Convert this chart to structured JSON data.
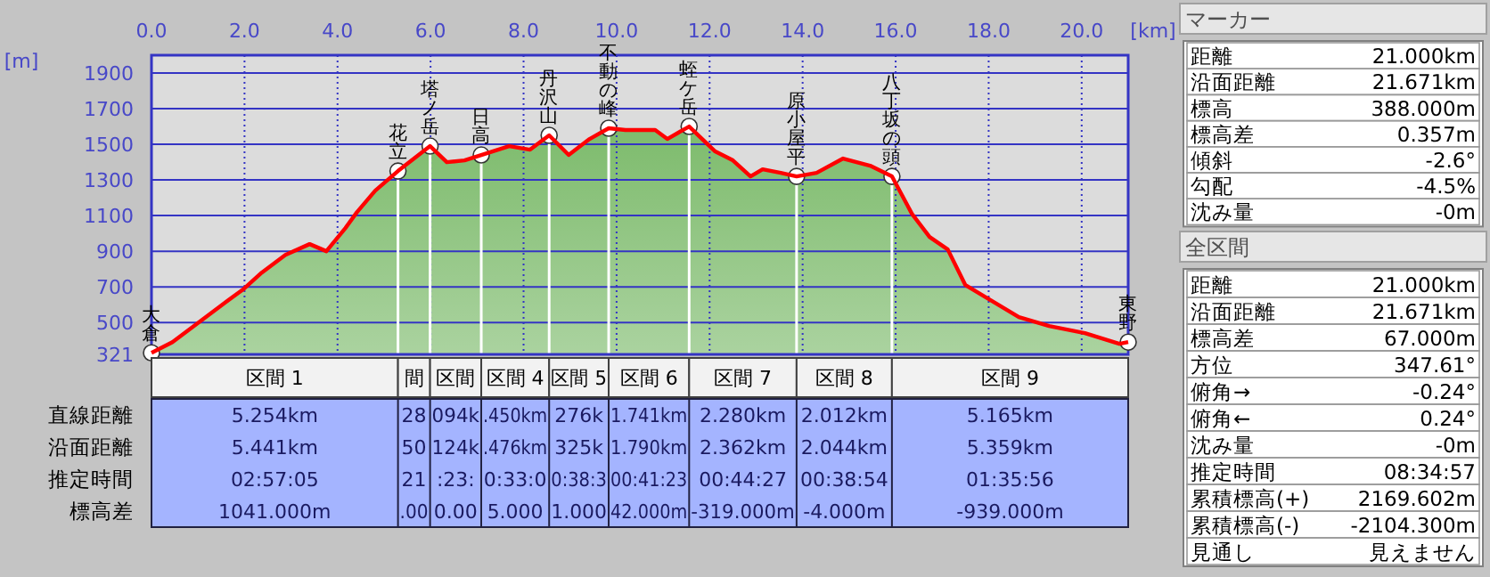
{
  "chart_data": [
    {
      "type": "area",
      "xlabel": "[km]",
      "ylabel": "[m]",
      "x": [
        0,
        0.45,
        0.96,
        1.47,
        1.99,
        2.37,
        2.88,
        3.4,
        3.76,
        4.17,
        4.42,
        4.81,
        5.3,
        5.99,
        6.35,
        6.73,
        7.09,
        7.69,
        8.14,
        8.55,
        8.97,
        9.42,
        9.83,
        10.19,
        10.83,
        11.09,
        11.56,
        12.12,
        12.5,
        12.88,
        13.14,
        13.53,
        13.87,
        14.3,
        14.87,
        15.45,
        15.92,
        16.35,
        16.73,
        17.12,
        17.5,
        18.01,
        18.65,
        19.3,
        20.07,
        20.81,
        21.0
      ],
      "series": [
        {
          "type": "area",
          "color": "#ff0000",
          "colors": [
            "#7dbb6c",
            "#7dbb6c",
            "#7dbb6c",
            "#7dbb6c",
            "#7dbb6c",
            "#7dbb6c",
            "#7dbb6c",
            "#7dbb6c",
            "#7dbb6c",
            "#7dbb6c",
            "#7dbb6c",
            "#7dbb6c",
            "#7dbb6c",
            "#7dbb6c",
            "#7dbb6c",
            "#7dbb6c",
            "#7dbb6c",
            "#7dbb6c",
            "#7dbb6c",
            "#7dbb6c",
            "#7dbb6c",
            "#7dbb6c",
            "#7dbb6c",
            "#7dbb6c",
            "#7dbb6c",
            "#7dbb6c",
            "#7dbb6c",
            "#7dbb6c",
            "#7dbb6c",
            "#7dbb6c",
            "#7dbb6c",
            "#7dbb6c",
            "#7dbb6c",
            "#7dbb6c",
            "#7dbb6c",
            "#7dbb6c",
            "#7dbb6c",
            "#7dbb6c",
            "#7dbb6c",
            "#7dbb6c",
            "#7dbb6c",
            "#7dbb6c",
            "#7dbb6c",
            "#7dbb6c",
            "#7dbb6c",
            "#7dbb6c",
            "#7dbb6c"
          ],
          "values": [
            330,
            390,
            490,
            590,
            690,
            780,
            880,
            940,
            900,
            1030,
            1120,
            1240,
            1350,
            1490,
            1400,
            1410,
            1440,
            1490,
            1470,
            1550,
            1440,
            1530,
            1590,
            1580,
            1580,
            1530,
            1600,
            1460,
            1410,
            1320,
            1360,
            1340,
            1320,
            1340,
            1420,
            1380,
            1320,
            1110,
            980,
            910,
            710,
            630,
            530,
            480,
            440,
            380,
            390
          ]
        }
      ],
      "xlim": [
        0,
        21
      ],
      "ylim": [
        321,
        2000
      ],
      "xticks": [
        {
          "value": 0,
          "label": "0.0"
        },
        {
          "value": 2,
          "label": "2.0"
        },
        {
          "value": 4,
          "label": "4.0"
        },
        {
          "value": 6,
          "label": "6.0"
        },
        {
          "value": 8,
          "label": "8.0"
        },
        {
          "value": 10,
          "label": "10.0"
        },
        {
          "value": 12,
          "label": "12.0"
        },
        {
          "value": 14,
          "label": "14.0"
        },
        {
          "value": 16,
          "label": "16.0"
        },
        {
          "value": 18,
          "label": "18.0"
        },
        {
          "value": 20,
          "label": "20.0"
        }
      ],
      "yticks": [
        321,
        500,
        700,
        900,
        1100,
        1300,
        1500,
        1700,
        1900
      ],
      "grid": true,
      "annotations": [
        {
          "text": "大倉",
          "x": 0,
          "y": 330
        },
        {
          "text": "花立",
          "x": 5.3,
          "y": 1350
        },
        {
          "text": "塔ノ岳",
          "x": 5.99,
          "y": 1490
        },
        {
          "text": "日高",
          "x": 7.09,
          "y": 1440
        },
        {
          "text": "丹沢山",
          "x": 8.55,
          "y": 1550
        },
        {
          "text": "不動の峰",
          "x": 9.83,
          "y": 1590
        },
        {
          "text": "蛭ケ岳",
          "x": 11.56,
          "y": 1600
        },
        {
          "text": "原小屋平",
          "x": 13.87,
          "y": 1320
        },
        {
          "text": "八丁坂の頭",
          "x": 15.92,
          "y": 1320
        },
        {
          "text": "東野",
          "x": 21.0,
          "y": 390
        }
      ]
    },
    {
      "type": "other",
      "categories": [
        "区間 1",
        "間",
        "区間",
        "区間 4",
        "区間 5",
        "区間 6",
        "区間 7",
        "区間 8",
        "区間 9"
      ],
      "y_categories": [
        "直線距離",
        "沿面距離",
        "推定時間",
        "標高差"
      ],
      "cell_labels": [
        [
          "5.254km",
          "28",
          "094k",
          ".450km",
          "276k",
          "1.741km",
          "2.280km",
          "2.012km",
          "5.165km"
        ],
        [
          "5.441km",
          "50",
          "124k",
          ".476km",
          "325k",
          "1.790km",
          "2.362km",
          "2.044km",
          "5.359km"
        ],
        [
          "02:57:05",
          "21",
          ":23:",
          "0:33:0",
          "0:38:3",
          "00:41:23",
          "00:44:27",
          "00:38:54",
          "01:35:56"
        ],
        [
          "1041.000m",
          ".00",
          "0.00",
          "5.000",
          "1.000",
          "42.000m",
          "-319.000m",
          "-4.000m",
          "-939.000m"
        ]
      ]
    },
    {
      "type": "other",
      "title": "マーカー",
      "y_categories": [
        "距離",
        "沿面距離",
        "標高",
        "標高差",
        "傾斜",
        "勾配",
        "沈み量"
      ],
      "cell_labels": [
        [
          "21.000km"
        ],
        [
          "21.671km"
        ],
        [
          "388.000m"
        ],
        [
          "0.357m"
        ],
        [
          "-2.6°"
        ],
        [
          "-4.5%"
        ],
        [
          "-0m"
        ]
      ]
    },
    {
      "type": "other",
      "title": "全区間",
      "y_categories": [
        "距離",
        "沿面距離",
        "標高差",
        "方位",
        "俯角→",
        "俯角←",
        "沈み量",
        "推定時間",
        "累積標高(+)",
        "累積標高(-)",
        "見通し"
      ],
      "cell_labels": [
        [
          "21.000km"
        ],
        [
          "21.671km"
        ],
        [
          "67.000m"
        ],
        [
          "347.61°"
        ],
        [
          "-0.24°"
        ],
        [
          "0.24°"
        ],
        [
          "-0m"
        ],
        [
          "08:34:57"
        ],
        [
          "2169.602m"
        ],
        [
          "-2104.300m"
        ],
        [
          "見えません"
        ]
      ]
    }
  ]
}
